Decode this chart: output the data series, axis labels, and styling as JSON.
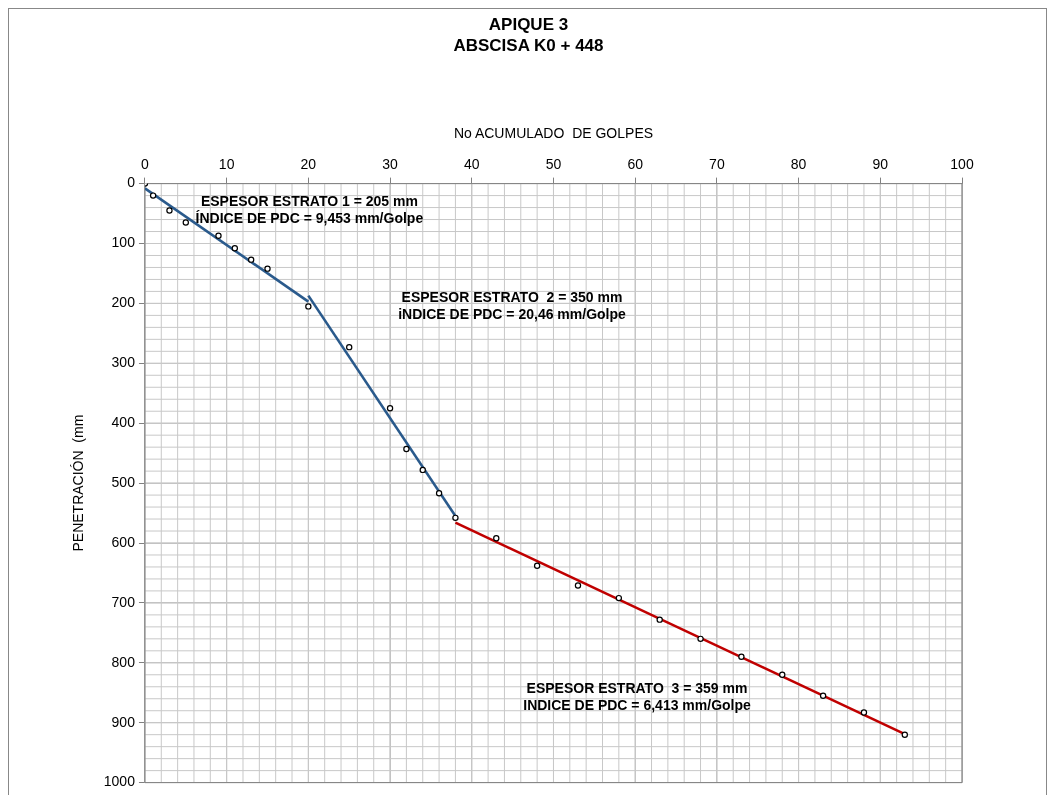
{
  "chart_data": {
    "type": "scatter",
    "title": "APIQUE 3",
    "subtitle": "ABSCISA K0 + 448",
    "xlabel": "No ACUMULADO  DE GOLPES",
    "ylabel": "PENETRACIÓN  (mm",
    "xlim": [
      0,
      100
    ],
    "xticks": [
      0,
      10,
      20,
      30,
      40,
      50,
      60,
      70,
      80,
      90,
      100
    ],
    "ylim": [
      1000,
      0
    ],
    "yticks": [
      0,
      100,
      200,
      300,
      400,
      500,
      600,
      700,
      800,
      900,
      1000
    ],
    "grid": true,
    "legend": false,
    "marker": "circle",
    "series": [
      {
        "type": "scatter",
        "color": "#000000",
        "x": [
          0,
          1,
          3,
          5,
          9,
          11,
          13,
          15,
          20,
          25,
          30,
          32,
          34,
          36,
          38,
          43,
          48,
          53,
          58,
          63,
          68,
          73,
          78,
          83,
          88,
          93
        ],
        "values": [
          0,
          20,
          45,
          65,
          87,
          108,
          127,
          142,
          205,
          273,
          375,
          443,
          478,
          517,
          558,
          592,
          638,
          671,
          692,
          728,
          760,
          790,
          820,
          855,
          883,
          920
        ]
      },
      {
        "type": "line",
        "color": "#2a5a8c",
        "marker": "none",
        "x": [
          0,
          20
        ],
        "values": [
          8,
          197
        ]
      },
      {
        "type": "line",
        "color": "#2a5a8c",
        "marker": "none",
        "x": [
          20,
          38
        ],
        "values": [
          187,
          555
        ]
      },
      {
        "type": "line",
        "color": "#c00000",
        "marker": "none",
        "x": [
          38,
          93
        ],
        "values": [
          566,
          919
        ]
      }
    ],
    "annotations": [
      "ESPESOR ESTRATO 1 = 205 mm\nÍNDICE DE PDC = 9,453 mm/Golpe",
      "ESPESOR ESTRATO  2 = 350 mm\niNDICE DE PDC = 20,46 mm/Golpe",
      "ESPESOR ESTRATO  3 = 359 mm\nINDICE DE PDC = 6,413 mm/Golpe"
    ]
  }
}
